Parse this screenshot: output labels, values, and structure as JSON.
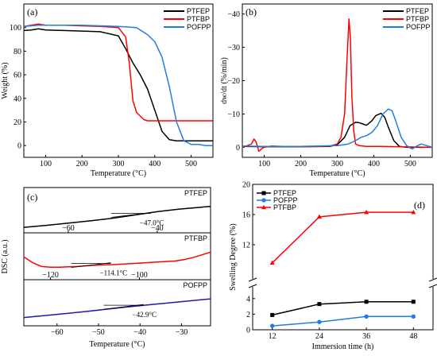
{
  "chart_data": [
    {
      "panel_label": "(a)",
      "type": "line",
      "xlabel": "Temperature (°C)",
      "ylabel": "Weight (%)",
      "xlim": [
        40,
        560
      ],
      "ylim": [
        -10,
        120
      ],
      "xticks": [
        100,
        200,
        300,
        400,
        500
      ],
      "yticks": [
        0,
        20,
        40,
        60,
        80,
        100
      ],
      "legend_position": "top-right",
      "series": [
        {
          "name": "PTFEP",
          "color": "#000000",
          "x": [
            40,
            60,
            80,
            100,
            150,
            200,
            250,
            300,
            320,
            340,
            360,
            380,
            400,
            420,
            440,
            460,
            500,
            540,
            560
          ],
          "y": [
            97.5,
            98,
            99,
            98,
            97.5,
            97,
            96.5,
            93,
            82,
            70,
            60,
            48,
            30,
            12,
            5,
            4,
            4,
            4,
            4
          ]
        },
        {
          "name": "PTFBP",
          "color": "#ff0000",
          "x": [
            40,
            60,
            80,
            100,
            150,
            200,
            250,
            300,
            320,
            330,
            340,
            350,
            360,
            370,
            380,
            400,
            450,
            500,
            560
          ],
          "y": [
            101,
            102,
            103,
            102,
            102,
            101.5,
            101,
            100,
            92,
            70,
            38,
            28,
            25,
            22,
            21,
            21,
            21,
            21,
            21
          ]
        },
        {
          "name": "POFPP",
          "color": "#1f7fe0",
          "x": [
            40,
            60,
            80,
            100,
            150,
            200,
            250,
            300,
            350,
            380,
            400,
            420,
            440,
            460,
            480,
            500,
            520,
            540,
            560
          ],
          "y": [
            101,
            101.5,
            102,
            102,
            102,
            102,
            101.5,
            101,
            100,
            94,
            88,
            75,
            50,
            20,
            4,
            1,
            1,
            0,
            0
          ]
        }
      ]
    },
    {
      "panel_label": "(b)",
      "type": "line",
      "xlabel": "Temperature (°C)",
      "ylabel": "dw/dt (%/min)",
      "xlim": [
        40,
        560
      ],
      "ylim": [
        3,
        -43
      ],
      "xticks": [
        100,
        200,
        300,
        400,
        500
      ],
      "yticks": [
        0,
        -10,
        -20,
        -30,
        -40
      ],
      "legend_position": "top-right",
      "series": [
        {
          "name": "PTFEP",
          "color": "#000000",
          "x": [
            40,
            100,
            200,
            280,
            300,
            320,
            335,
            350,
            360,
            370,
            380,
            395,
            405,
            420,
            430,
            440,
            455,
            470,
            490,
            560
          ],
          "y": [
            -0.3,
            -0.2,
            -0.2,
            -0.3,
            -0.8,
            -3,
            -6.5,
            -7.5,
            -7.4,
            -7,
            -6.6,
            -8,
            -9.5,
            -10.2,
            -9,
            -6,
            -2,
            -0.3,
            0,
            0
          ]
        },
        {
          "name": "PTFBP",
          "color": "#ff0000",
          "x": [
            40,
            55,
            65,
            72,
            78,
            85,
            95,
            100,
            120,
            150,
            200,
            250,
            280,
            300,
            310,
            320,
            326,
            332,
            336,
            340,
            345,
            350,
            360,
            380,
            420,
            560
          ],
          "y": [
            0,
            -0.6,
            -1,
            -2.5,
            -1.5,
            1.2,
            0.2,
            0,
            -0.4,
            -0.3,
            -0.2,
            -0.3,
            -0.4,
            -1,
            -3,
            -10,
            -25,
            -38.5,
            -33,
            -15,
            -5,
            -1,
            -0.5,
            -0.3,
            -0.3,
            0
          ]
        },
        {
          "name": "POFPP",
          "color": "#1f7fe0",
          "x": [
            40,
            100,
            200,
            300,
            330,
            350,
            365,
            380,
            395,
            410,
            425,
            440,
            450,
            460,
            475,
            490,
            505,
            520,
            530,
            545,
            560
          ],
          "y": [
            -0.4,
            -0.3,
            -0.3,
            -0.5,
            -1,
            -2,
            -3,
            -3.5,
            -4.5,
            -6.5,
            -10,
            -11.5,
            -11,
            -8,
            -3,
            -0.5,
            0.5,
            -0.5,
            -1,
            -0.5,
            0
          ]
        }
      ]
    },
    {
      "panel_label": "(c)",
      "type": "line",
      "ylabel": "DSC (a.u.)",
      "xlabel": "Temperature (°C)",
      "subplots": [
        {
          "name": "PTFEP",
          "color": "#000000",
          "annotation": "−47.0°C",
          "xlim": [
            -70,
            -28
          ],
          "xticks": [
            -60,
            -40
          ],
          "ylim": [
            0,
            1
          ],
          "x": [
            -70,
            -65,
            -60,
            -55,
            -50,
            -45,
            -40,
            -35,
            -30,
            -28
          ],
          "y": [
            0.12,
            0.18,
            0.25,
            0.32,
            0.4,
            0.5,
            0.6,
            0.68,
            0.74,
            0.76
          ]
        },
        {
          "name": "PTFBP",
          "color": "#ff0000",
          "annotation": "−114.1°C",
          "xlim": [
            -126,
            -84
          ],
          "xticks": [
            -120,
            -100
          ],
          "ylim": [
            0,
            1
          ],
          "x": [
            -126,
            -124,
            -122,
            -120,
            -118,
            -116,
            -114,
            -112,
            -110,
            -105,
            -100,
            -95,
            -92,
            -90,
            -88,
            -86,
            -84
          ],
          "y": [
            0.62,
            0.45,
            0.34,
            0.32,
            0.32,
            0.33,
            0.34,
            0.36,
            0.38,
            0.4,
            0.44,
            0.48,
            0.5,
            0.54,
            0.6,
            0.68,
            0.76
          ]
        },
        {
          "name": "POFPP",
          "color": "#1a1ab0",
          "annotation": "−42.9°C",
          "xlim": [
            -68,
            -23
          ],
          "xticks": [
            -60,
            -50,
            -40,
            -30
          ],
          "ylim": [
            0,
            1
          ],
          "x": [
            -68,
            -63,
            -58,
            -53,
            -48,
            -43,
            -38,
            -33,
            -28,
            -23
          ],
          "y": [
            0.2,
            0.26,
            0.32,
            0.38,
            0.45,
            0.52,
            0.58,
            0.64,
            0.7,
            0.76
          ]
        }
      ]
    },
    {
      "panel_label": "(d)",
      "type": "line",
      "xlabel": "Immersion time (h)",
      "ylabel": "Swelling Degree (%)",
      "categories": [
        12,
        24,
        36,
        48
      ],
      "yticks": [
        0,
        2,
        4,
        12,
        16,
        20
      ],
      "axis_break": [
        5,
        7
      ],
      "legend_position": "top-left",
      "series": [
        {
          "name": "PTFEP",
          "color": "#000000",
          "marker": "square",
          "values": [
            1.9,
            3.3,
            3.6,
            3.6
          ]
        },
        {
          "name": "POFPP",
          "color": "#1f7fe0",
          "marker": "circle",
          "values": [
            0.5,
            1.0,
            1.7,
            1.7
          ]
        },
        {
          "name": "PTFBP",
          "color": "#ff0000",
          "marker": "triangle",
          "values": [
            9.6,
            15.7,
            16.3,
            16.3
          ]
        }
      ]
    }
  ]
}
